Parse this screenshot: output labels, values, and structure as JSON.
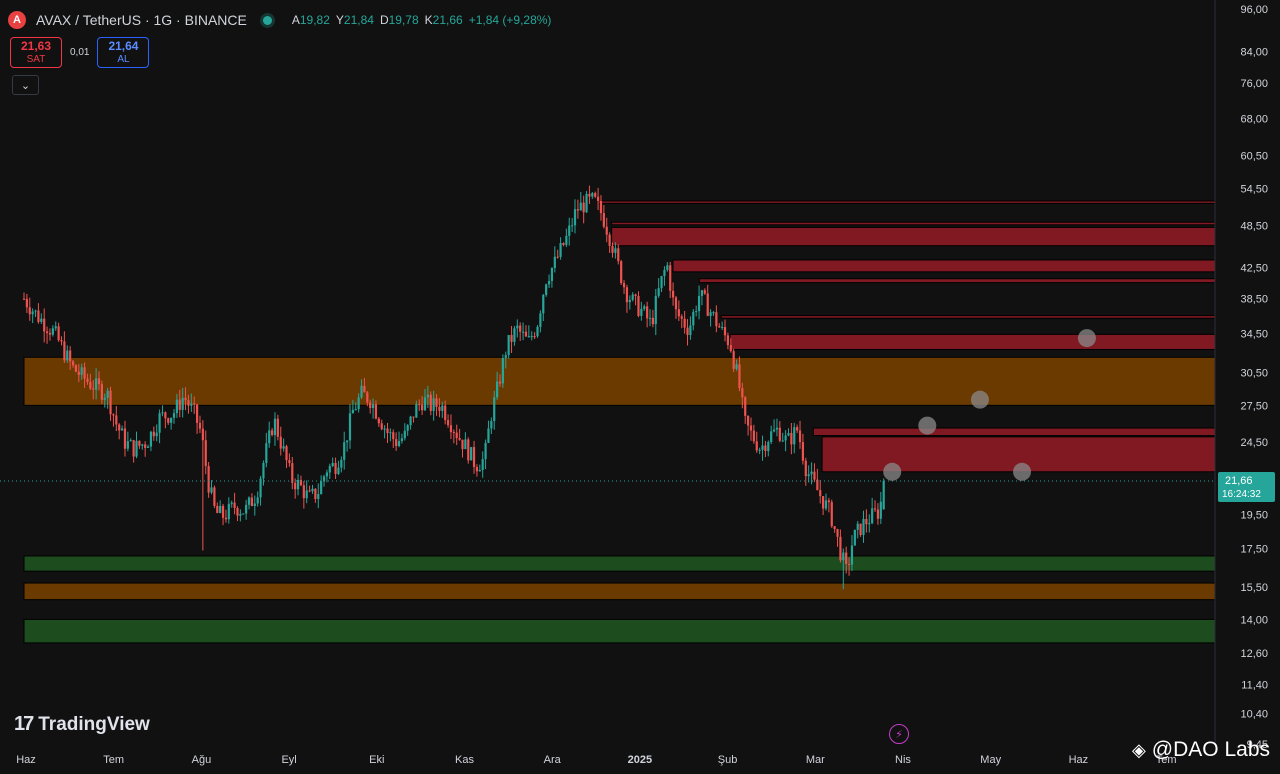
{
  "header": {
    "symbol_icon": "avax-icon",
    "symbol_glyph": "A",
    "title": "AVAX / TetherUS · 1G · BINANCE",
    "ohlc": [
      {
        "k": "A",
        "v": "19,82"
      },
      {
        "k": "Y",
        "v": "21,84"
      },
      {
        "k": "D",
        "v": "19,78"
      },
      {
        "k": "K",
        "v": "21,66"
      }
    ],
    "change": "+1,84 (+9,28%)"
  },
  "trade": {
    "sell_price": "21,63",
    "sell_label": "SAT",
    "spread": "0,01",
    "buy_price": "21,64",
    "buy_label": "AL",
    "collapse_glyph": "⌄"
  },
  "branding": {
    "tv_mark": "17",
    "tv_name": "TradingView",
    "watermark": "@DAO Labs",
    "watermark_icon": "◈",
    "bolt_glyph": "⚡"
  },
  "colors": {
    "up": "#26a69a",
    "down": "#ef5350",
    "resistance_zone": "#801922",
    "pivot_zone": "#6b3a00",
    "support_zone": "#1d4d1e",
    "price_tag": "#26a69a",
    "background": "#111111"
  },
  "chart_data": {
    "type": "candlestick",
    "y_scale": "log",
    "ylim": [
      9.45,
      96.0
    ],
    "y_ticks": [
      "96,00",
      "84,00",
      "76,00",
      "68,00",
      "60,50",
      "54,50",
      "48,50",
      "42,50",
      "38,50",
      "34,50",
      "30,50",
      "27,50",
      "24,50",
      "21,66",
      "19,50",
      "17,50",
      "15,50",
      "14,00",
      "12,60",
      "11,40",
      "10,40",
      "9,45"
    ],
    "y_tick_values": [
      96.0,
      84.0,
      76.0,
      68.0,
      60.5,
      54.5,
      48.5,
      42.5,
      38.5,
      34.5,
      30.5,
      27.5,
      24.5,
      21.66,
      19.5,
      17.5,
      15.5,
      14.0,
      12.6,
      11.4,
      10.4,
      9.45
    ],
    "x_ticks": [
      "Haz",
      "Tem",
      "Ağu",
      "Eyl",
      "Eki",
      "Kas",
      "Ara",
      "2025",
      "Şub",
      "Mar",
      "Nis",
      "May",
      "Haz",
      "Tem"
    ],
    "x_tick_months": [
      0,
      1,
      2,
      3,
      4,
      5,
      6,
      7,
      8,
      9,
      10,
      11,
      12,
      13
    ],
    "start_month": "Haz 2024",
    "last_month": "Mar 2025",
    "current_price": 21.66,
    "current_price_label": "21,66",
    "countdown": "16:24:32",
    "close_path": [
      [
        0.0,
        38.5
      ],
      [
        0.15,
        36.5
      ],
      [
        0.35,
        34.5
      ],
      [
        0.55,
        31.0
      ],
      [
        0.75,
        29.5
      ],
      [
        0.95,
        28.5
      ],
      [
        1.05,
        26.0
      ],
      [
        1.15,
        24.5
      ],
      [
        1.25,
        24.0
      ],
      [
        1.4,
        24.5
      ],
      [
        1.55,
        26.5
      ],
      [
        1.7,
        26.8
      ],
      [
        1.82,
        28.3
      ],
      [
        1.94,
        26.8
      ],
      [
        2.02,
        25.2
      ],
      [
        2.1,
        21.6
      ],
      [
        2.18,
        19.6
      ],
      [
        2.28,
        19.4
      ],
      [
        2.4,
        20.0
      ],
      [
        2.52,
        19.7
      ],
      [
        2.65,
        20.8
      ],
      [
        2.75,
        23.5
      ],
      [
        2.85,
        26.3
      ],
      [
        2.95,
        24.0
      ],
      [
        3.05,
        21.8
      ],
      [
        3.15,
        21.3
      ],
      [
        3.25,
        20.5
      ],
      [
        3.35,
        20.9
      ],
      [
        3.45,
        22.5
      ],
      [
        3.55,
        22.8
      ],
      [
        3.65,
        24.2
      ],
      [
        3.75,
        27.0
      ],
      [
        3.85,
        28.5
      ],
      [
        3.95,
        28.0
      ],
      [
        4.05,
        26.5
      ],
      [
        4.15,
        25.2
      ],
      [
        4.25,
        24.5
      ],
      [
        4.35,
        25.0
      ],
      [
        4.45,
        27.0
      ],
      [
        4.55,
        28.0
      ],
      [
        4.65,
        27.4
      ],
      [
        4.75,
        27.6
      ],
      [
        4.85,
        26.3
      ],
      [
        4.95,
        25.0
      ],
      [
        5.05,
        24.0
      ],
      [
        5.15,
        22.8
      ],
      [
        5.25,
        23.2
      ],
      [
        5.32,
        26.5
      ],
      [
        5.4,
        29.0
      ],
      [
        5.5,
        33.0
      ],
      [
        5.62,
        35.0
      ],
      [
        5.75,
        33.5
      ],
      [
        5.85,
        35.5
      ],
      [
        5.95,
        41.0
      ],
      [
        6.05,
        43.0
      ],
      [
        6.2,
        47.0
      ],
      [
        6.3,
        51.0
      ],
      [
        6.4,
        52.0
      ],
      [
        6.5,
        52.5
      ],
      [
        6.6,
        50.0
      ],
      [
        6.7,
        46.0
      ],
      [
        6.78,
        42.5
      ],
      [
        6.86,
        39.5
      ],
      [
        6.95,
        38.0
      ],
      [
        7.05,
        37.0
      ],
      [
        7.15,
        35.5
      ],
      [
        7.25,
        40.0
      ],
      [
        7.33,
        43.0
      ],
      [
        7.42,
        37.0
      ],
      [
        7.5,
        36.0
      ],
      [
        7.58,
        35.0
      ],
      [
        7.7,
        39.0
      ],
      [
        7.8,
        37.5
      ],
      [
        7.88,
        36.0
      ],
      [
        7.97,
        34.5
      ],
      [
        8.05,
        33.5
      ],
      [
        8.15,
        29.5
      ],
      [
        8.22,
        26.0
      ],
      [
        8.3,
        25.0
      ],
      [
        8.4,
        24.0
      ],
      [
        8.5,
        25.0
      ],
      [
        8.6,
        25.5
      ],
      [
        8.7,
        24.5
      ],
      [
        8.82,
        25.5
      ],
      [
        8.92,
        22.5
      ],
      [
        9.0,
        21.5
      ],
      [
        9.1,
        20.5
      ],
      [
        9.2,
        19.5
      ],
      [
        9.3,
        17.5
      ],
      [
        9.38,
        16.2
      ],
      [
        9.45,
        18.0
      ],
      [
        9.55,
        18.8
      ],
      [
        9.65,
        19.3
      ],
      [
        9.75,
        19.7
      ],
      [
        9.82,
        21.66
      ]
    ],
    "extremes": [
      {
        "month": 2.05,
        "low": 17.4
      },
      {
        "month": 6.45,
        "high": 55.0
      },
      {
        "month": 9.35,
        "low": 15.4
      }
    ],
    "zones": [
      {
        "kind": "resistance",
        "from_month": 6.55,
        "low": 52.0,
        "high": 52.4
      },
      {
        "kind": "resistance",
        "from_month": 6.7,
        "low": 48.6,
        "high": 49.0
      },
      {
        "kind": "resistance",
        "from_month": 6.7,
        "low": 45.5,
        "high": 48.2
      },
      {
        "kind": "resistance",
        "from_month": 7.4,
        "low": 41.9,
        "high": 43.5
      },
      {
        "kind": "resistance",
        "from_month": 7.7,
        "low": 40.5,
        "high": 41.0
      },
      {
        "kind": "resistance",
        "from_month": 7.95,
        "low": 36.2,
        "high": 36.5
      },
      {
        "kind": "resistance",
        "from_month": 8.05,
        "low": 32.8,
        "high": 34.4
      },
      {
        "kind": "pivot",
        "from_month": 0.0,
        "low": 27.5,
        "high": 32.0
      },
      {
        "kind": "resistance",
        "from_month": 9.0,
        "low": 25.0,
        "high": 25.6
      },
      {
        "kind": "resistance",
        "from_month": 9.1,
        "low": 22.3,
        "high": 24.9
      },
      {
        "kind": "support",
        "from_month": 0.0,
        "low": 16.3,
        "high": 17.1
      },
      {
        "kind": "pivot",
        "from_month": 0.0,
        "low": 14.9,
        "high": 15.7
      },
      {
        "kind": "support",
        "from_month": 0.0,
        "low": 13.0,
        "high": 14.0
      }
    ],
    "target_markers": [
      {
        "month": 9.9,
        "price": 22.3
      },
      {
        "month": 10.3,
        "price": 25.8
      },
      {
        "month": 10.9,
        "price": 28.0
      },
      {
        "month": 11.38,
        "price": 22.3
      },
      {
        "month": 12.12,
        "price": 34.0
      }
    ]
  }
}
